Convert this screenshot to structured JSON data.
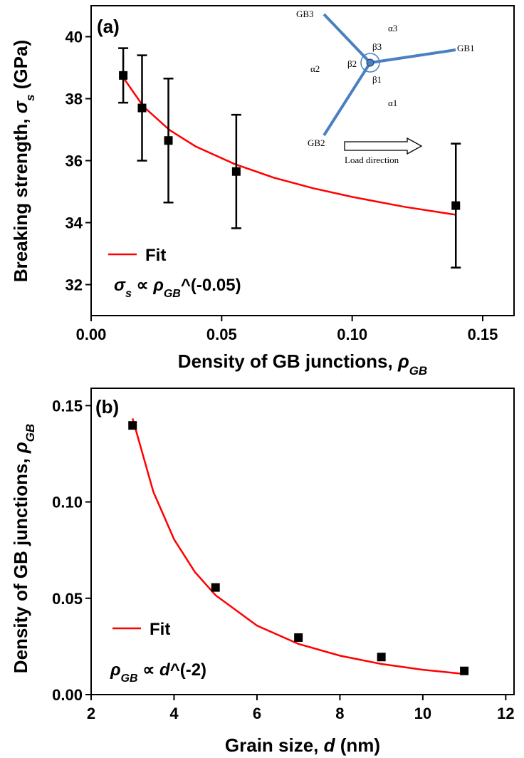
{
  "chart_data": [
    {
      "type": "scatter",
      "panel": "(a)",
      "xlabel": [
        "Density of GB junctions, ",
        "ρ",
        "GB"
      ],
      "ylabel": [
        "Breaking strength, ",
        "σ",
        "s",
        " (GPa)"
      ],
      "annotation": [
        "σ",
        "s",
        " ∝ ",
        "ρ",
        "GB",
        "^(-0.05)"
      ],
      "xlim": [
        0,
        0.162
      ],
      "ylim": [
        31,
        41
      ],
      "xticks": [
        {
          "value": 0,
          "label": "0.00"
        },
        0.05,
        {
          "value": 0.1,
          "label": "0.10"
        },
        0.15
      ],
      "yticks": [
        32,
        34,
        36,
        38,
        40
      ],
      "series": [
        {
          "name": "Fit",
          "color": "#ff0000",
          "x": [
            0.012,
            0.02,
            0.03,
            0.04,
            0.055,
            0.07,
            0.085,
            0.1,
            0.12,
            0.14
          ],
          "values": [
            38.72,
            37.75,
            36.99,
            36.46,
            35.89,
            35.45,
            35.11,
            34.83,
            34.51,
            34.25
          ]
        },
        {
          "color": "#000000",
          "marker": "square",
          "x": [
            0.0123,
            0.0195,
            0.0296,
            0.0556,
            0.1397
          ],
          "values": [
            38.75,
            37.7,
            36.65,
            35.65,
            34.55
          ],
          "errors": [
            0.88,
            1.7,
            2.0,
            1.83,
            2.0
          ]
        }
      ],
      "inset": {
        "labels": [
          "GB1",
          "GB2",
          "GB3",
          "α1",
          "α2",
          "α3",
          "β1",
          "β2",
          "β3"
        ],
        "arrow_label": "Load direction"
      }
    },
    {
      "type": "scatter",
      "panel": "(b)",
      "xlabel": [
        "Grain size, ",
        "d",
        " (nm)"
      ],
      "ylabel": [
        "Density of GB junctions, ",
        "ρ",
        "GB"
      ],
      "annotation": [
        "ρ",
        "GB",
        " ∝ ",
        "d",
        "^(-2)"
      ],
      "xlim": [
        2,
        12.2
      ],
      "ylim": [
        0,
        0.159
      ],
      "xticks": [
        2,
        4,
        6,
        8,
        10,
        12
      ],
      "yticks": [
        {
          "value": 0,
          "label": "0.00"
        },
        0.05,
        {
          "value": 0.1,
          "label": "0.10"
        },
        0.15
      ],
      "series": [
        {
          "name": "Fit",
          "color": "#ff0000",
          "x": [
            3,
            3.5,
            4,
            4.5,
            5,
            6,
            7,
            8,
            9,
            10,
            11
          ],
          "values": [
            0.1433,
            0.1053,
            0.0806,
            0.0637,
            0.0516,
            0.0358,
            0.0263,
            0.0202,
            0.0159,
            0.0129,
            0.0107
          ]
        },
        {
          "color": "#000000",
          "marker": "square",
          "x": [
            3,
            5,
            7,
            9,
            11
          ],
          "values": [
            0.1397,
            0.0556,
            0.0296,
            0.0195,
            0.0123
          ]
        }
      ]
    }
  ]
}
